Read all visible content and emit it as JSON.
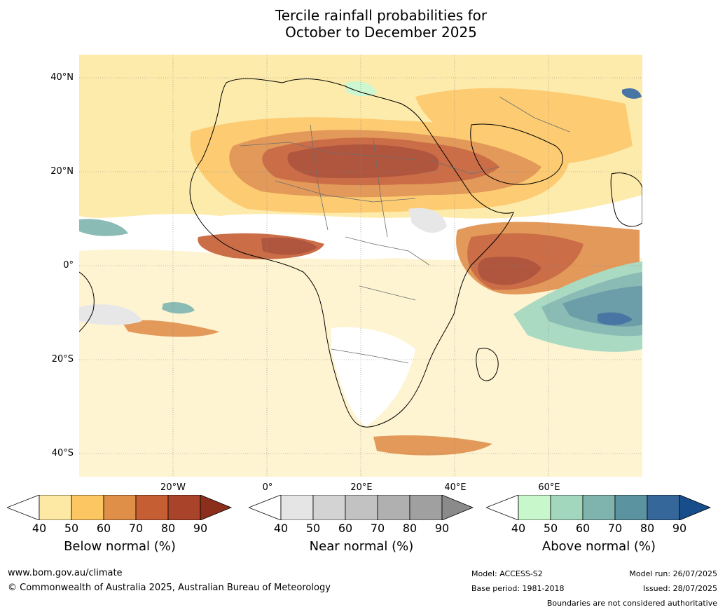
{
  "title": {
    "line1": "Tercile rainfall probabilities for",
    "line2": "October to December 2025"
  },
  "map": {
    "lat_labels": [
      "40°N",
      "20°N",
      "0°",
      "20°S",
      "40°S"
    ],
    "lon_labels": [
      "20°W",
      "0°",
      "20°E",
      "40°E",
      "60°E"
    ],
    "colors": {
      "below": [
        "#fde9a3",
        "#fcc663",
        "#df8f48",
        "#c65e34",
        "#a9442a",
        "#8b2e1c"
      ],
      "near": [
        "#e5e5e5",
        "#d3d3d3",
        "#c2c2c2",
        "#b0b0b0",
        "#a0a0a0",
        "#8a8a8a"
      ],
      "above": [
        "#c8f7cc",
        "#a2d6bd",
        "#7fb4ae",
        "#5b94a0",
        "#35679a",
        "#164d8a"
      ]
    }
  },
  "colorbars": [
    {
      "id": "below",
      "title": "Below normal (%)",
      "ticks": [
        "40",
        "50",
        "60",
        "70",
        "80",
        "90"
      ]
    },
    {
      "id": "near",
      "title": "Near normal (%)",
      "ticks": [
        "40",
        "50",
        "60",
        "70",
        "80",
        "90"
      ]
    },
    {
      "id": "above",
      "title": "Above normal (%)",
      "ticks": [
        "40",
        "50",
        "60",
        "70",
        "80",
        "90"
      ]
    }
  ],
  "footer": {
    "website": "www.bom.gov.au/climate",
    "copyright": "© Commonwealth of Australia 2025, Australian Bureau of Meteorology",
    "model": "Model: ACCESS-S2",
    "base_period": "Base period: 1981-2018",
    "model_run": "Model run: 26/07/2025",
    "issued": "Issued: 28/07/2025",
    "disclaimer": "Boundaries are not considered authoritative"
  }
}
